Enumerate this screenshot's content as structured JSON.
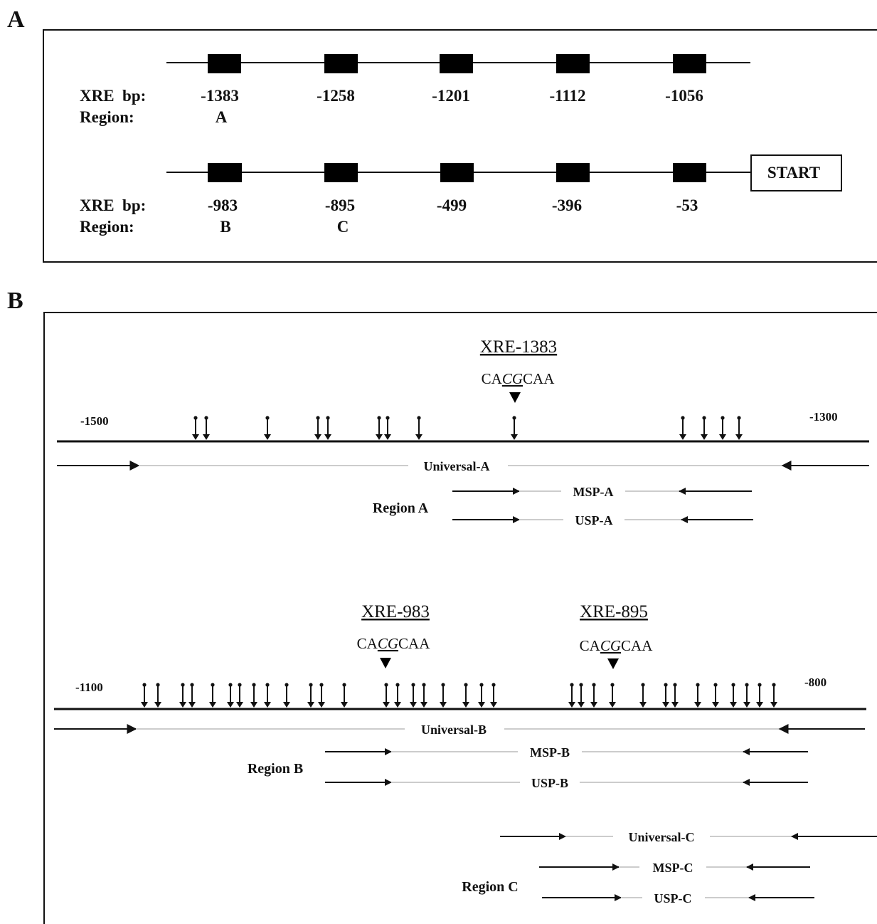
{
  "panel_a": {
    "label": "A",
    "row_label_bp": "XRE  bp:",
    "row_label_region": "Region:",
    "row1": [
      {
        "bp": "-1383",
        "region": "A"
      },
      {
        "bp": "-1258",
        "region": ""
      },
      {
        "bp": "-1201",
        "region": ""
      },
      {
        "bp": "-1112",
        "region": ""
      },
      {
        "bp": "-1056",
        "region": ""
      }
    ],
    "row2": [
      {
        "bp": "-983",
        "region": "B"
      },
      {
        "bp": "-895",
        "region": "C"
      },
      {
        "bp": "-499",
        "region": ""
      },
      {
        "bp": "-396",
        "region": ""
      },
      {
        "bp": "-53",
        "region": ""
      }
    ],
    "start_label": "START"
  },
  "panel_b": {
    "label": "B",
    "section_a": {
      "xre_title": "XRE-1383",
      "seq_prefix": "CA",
      "seq_cg": "CG",
      "seq_suffix": "CAA",
      "pos_left": "-1500",
      "pos_right": "-1300",
      "universal": "Universal-A",
      "region_label": "Region A",
      "msp": "MSP-A",
      "usp": "USP-A"
    },
    "section_b": {
      "xre_left_title": "XRE-983",
      "xre_right_title": "XRE-895",
      "seq_prefix": "CA",
      "seq_cg": "CG",
      "seq_suffix": "CAA",
      "pos_left": "-1100",
      "pos_right": "-800",
      "universal_b": "Universal-B",
      "region_b_label": "Region B",
      "msp_b": "MSP-B",
      "usp_b": "USP-B",
      "universal_c": "Universal-C",
      "region_c_label": "Region C",
      "msp_c": "MSP-C",
      "usp_c": "USP-C"
    },
    "cpg_sites_a": 13,
    "cpg_sites_b": 40
  }
}
